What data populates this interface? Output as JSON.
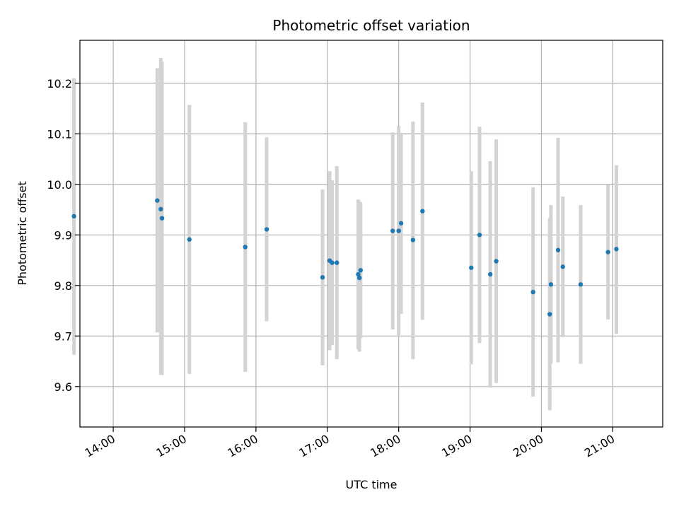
{
  "chart_data": {
    "type": "scatter",
    "title": "Photometric offset variation",
    "xlabel": "UTC time",
    "ylabel": "Photometric offset",
    "x_ticks": [
      "14:00",
      "15:00",
      "16:00",
      "17:00",
      "18:00",
      "19:00",
      "20:00",
      "21:00"
    ],
    "y_ticks": [
      "9.6",
      "9.7",
      "9.8",
      "9.9",
      "10.0",
      "10.1",
      "10.2"
    ],
    "xlim": [
      "13:32",
      "21:42"
    ],
    "ylim": [
      9.52,
      10.285
    ],
    "grid": true,
    "series": [
      {
        "points": [
          {
            "x": "13:27",
            "y": 9.937,
            "lo": 9.663,
            "hi": 10.21
          },
          {
            "x": "14:37",
            "y": 9.968,
            "lo": 9.707,
            "hi": 10.23
          },
          {
            "x": "14:40",
            "y": 9.951,
            "lo": 9.623,
            "hi": 10.25
          },
          {
            "x": "14:41",
            "y": 9.933,
            "lo": 9.623,
            "hi": 10.243
          },
          {
            "x": "15:04",
            "y": 9.891,
            "lo": 9.625,
            "hi": 10.157
          },
          {
            "x": "15:51",
            "y": 9.876,
            "lo": 9.629,
            "hi": 10.123
          },
          {
            "x": "16:09",
            "y": 9.911,
            "lo": 9.729,
            "hi": 10.093
          },
          {
            "x": "16:56",
            "y": 9.816,
            "lo": 9.642,
            "hi": 9.99
          },
          {
            "x": "17:02",
            "y": 9.849,
            "lo": 9.672,
            "hi": 10.026
          },
          {
            "x": "17:04",
            "y": 9.845,
            "lo": 9.682,
            "hi": 10.008
          },
          {
            "x": "17:08",
            "y": 9.845,
            "lo": 9.654,
            "hi": 10.036
          },
          {
            "x": "17:26",
            "y": 9.822,
            "lo": 9.674,
            "hi": 9.97
          },
          {
            "x": "17:27",
            "y": 9.815,
            "lo": 9.669,
            "hi": 9.966
          },
          {
            "x": "17:28",
            "y": 9.83,
            "lo": 9.696,
            "hi": 9.964
          },
          {
            "x": "17:55",
            "y": 9.908,
            "lo": 9.713,
            "hi": 10.103
          },
          {
            "x": "18:00",
            "y": 9.908,
            "lo": 9.7,
            "hi": 10.116
          },
          {
            "x": "18:02",
            "y": 9.923,
            "lo": 9.744,
            "hi": 10.102
          },
          {
            "x": "18:12",
            "y": 9.89,
            "lo": 9.654,
            "hi": 10.124
          },
          {
            "x": "18:20",
            "y": 9.947,
            "lo": 9.732,
            "hi": 10.162
          },
          {
            "x": "19:01",
            "y": 9.835,
            "lo": 9.644,
            "hi": 10.026
          },
          {
            "x": "19:08",
            "y": 9.9,
            "lo": 9.686,
            "hi": 10.114
          },
          {
            "x": "19:17",
            "y": 9.822,
            "lo": 9.598,
            "hi": 10.046
          },
          {
            "x": "19:22",
            "y": 9.848,
            "lo": 9.607,
            "hi": 10.089
          },
          {
            "x": "19:53",
            "y": 9.787,
            "lo": 9.58,
            "hi": 9.994
          },
          {
            "x": "20:07",
            "y": 9.743,
            "lo": 9.553,
            "hi": 9.933
          },
          {
            "x": "20:08",
            "y": 9.802,
            "lo": 9.645,
            "hi": 9.959
          },
          {
            "x": "20:14",
            "y": 9.87,
            "lo": 9.648,
            "hi": 10.092
          },
          {
            "x": "20:18",
            "y": 9.837,
            "lo": 9.698,
            "hi": 9.976
          },
          {
            "x": "20:33",
            "y": 9.802,
            "lo": 9.645,
            "hi": 9.959
          },
          {
            "x": "20:56",
            "y": 9.866,
            "lo": 9.733,
            "hi": 9.999
          },
          {
            "x": "21:03",
            "y": 9.872,
            "lo": 9.704,
            "hi": 10.038
          }
        ],
        "marker_color": "#1f77b4",
        "errorbar_color": "#d3d3d3"
      }
    ]
  }
}
